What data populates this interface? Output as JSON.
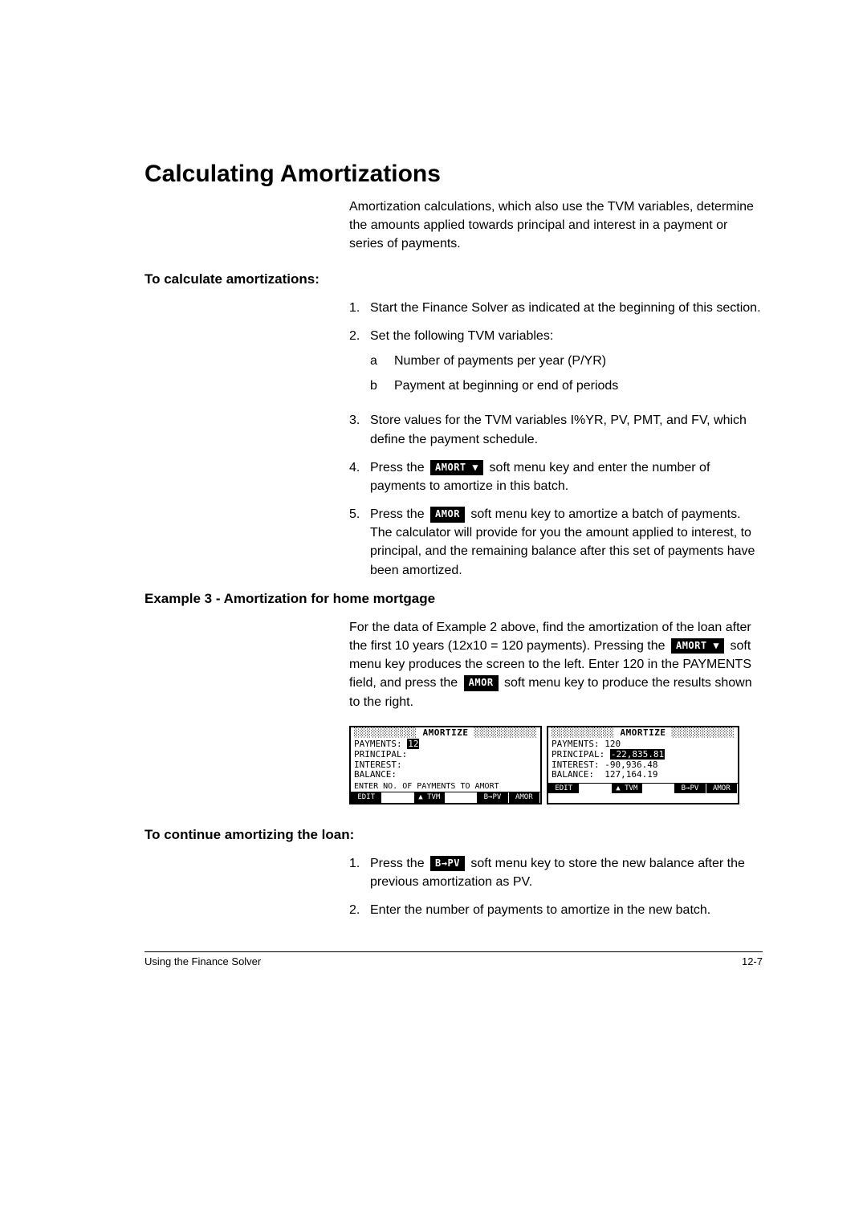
{
  "title": "Calculating Amortizations",
  "intro": "Amortization calculations, which also use the TVM variables, determine the amounts applied towards principal and interest in a payment or series of payments.",
  "sub1": "To calculate amortizations:",
  "steps1": [
    {
      "n": "1.",
      "body": "Start the Finance Solver as indicated at the beginning of this section."
    },
    {
      "n": "2.",
      "body": "Set the following TVM variables:",
      "subs": [
        {
          "l": "a",
          "t": "Number of payments per year (P/YR)"
        },
        {
          "l": "b",
          "t": "Payment at beginning or end of periods"
        }
      ]
    },
    {
      "n": "3.",
      "body": "Store values for the TVM variables I%YR, PV, PMT, and FV, which define the payment schedule."
    },
    {
      "n": "4.",
      "pre": "Press the ",
      "key": "AMORT ▼",
      "post": " soft menu key and enter the number of payments to amortize in this batch."
    },
    {
      "n": "5.",
      "pre": "Press the ",
      "key": "AMOR",
      "post": " soft menu key to amortize a batch of payments. The calculator will provide for you the amount applied to interest, to principal, and the remaining balance after this set of payments have been amortized."
    }
  ],
  "sub2": "Example 3 - Amortization for home mortgage",
  "example_para": {
    "t1": "For the data of Example 2 above, find the amortization of the loan after the first 10 years (12x10 = 120 payments). Pressing the ",
    "k1": "AMORT ▼",
    "t2": " soft menu key produces the screen to the left. Enter 120 in the PAYMENTS field, and press the ",
    "k2": "AMOR",
    "t3": " soft menu key to produce the results shown to the right."
  },
  "screen_left": {
    "header": "░░░░░░░░░░░ AMORTIZE ░░░░░░░░░░░",
    "rows": [
      {
        "label": "PAYMENTS:",
        "val": "12",
        "hl": true
      },
      {
        "label": "PRINCIPAL:",
        "val": ""
      },
      {
        "label": "INTEREST:",
        "val": ""
      },
      {
        "label": "BALANCE:",
        "val": ""
      }
    ],
    "hint": "ENTER NO. OF PAYMENTS TO AMORT",
    "menu": [
      "EDIT",
      "",
      "▲ TVM",
      "",
      "B→PV",
      "AMOR"
    ]
  },
  "screen_right": {
    "header": "░░░░░░░░░░░ AMORTIZE ░░░░░░░░░░░",
    "rows": [
      {
        "label": "PAYMENTS:",
        "val": "120"
      },
      {
        "label": "PRINCIPAL:",
        "val": "-22,835.81",
        "hl": true
      },
      {
        "label": "INTEREST:",
        "val": "-90,936.48"
      },
      {
        "label": "BALANCE:",
        "val": " 127,164.19"
      }
    ],
    "hint": "",
    "menu": [
      "EDIT",
      "",
      "▲ TVM",
      "",
      "B→PV",
      "AMOR"
    ]
  },
  "sub3": "To continue amortizing the loan:",
  "steps3": [
    {
      "n": "1.",
      "pre": "Press the ",
      "key": "B→PV",
      "post": " soft menu key to store the new balance after the previous amortization as PV."
    },
    {
      "n": "2.",
      "body": "Enter the number of payments to amortize in the new batch."
    }
  ],
  "footer_left": "Using the Finance Solver",
  "footer_right": "12-7"
}
